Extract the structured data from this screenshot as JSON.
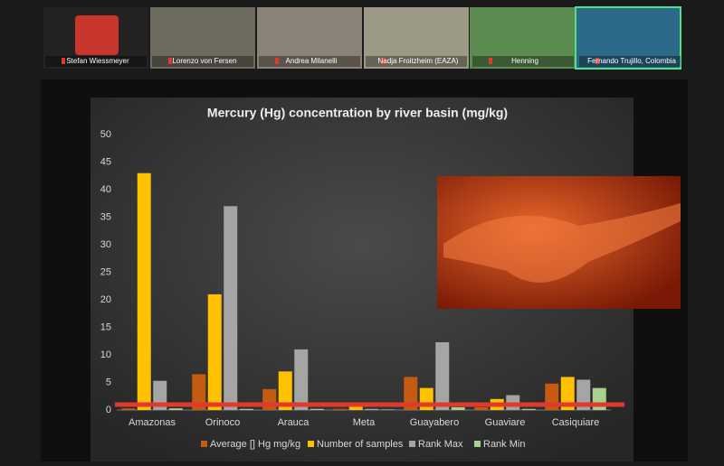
{
  "participants": [
    "Stefan Wiessmeyer",
    "Lorenzo von Fersen",
    "Andrea Milanelli",
    "Nadja Froitzheim (EAZA)",
    "Henning",
    "Fernando Trujillo, Colombia"
  ],
  "chart_data": {
    "type": "bar",
    "title": "Mercury (Hg) concentration by river basin (mg/kg)",
    "categories": [
      "Amazonas",
      "Orinoco",
      "Arauca",
      "Meta",
      "Guayabero",
      "Guaviare",
      "Casiquiare"
    ],
    "series": [
      {
        "name": "Average [] Hg mg/kg",
        "color": "#c55a11",
        "values": [
          0.3,
          6.5,
          3.8,
          0.2,
          6,
          0.5,
          4.8
        ]
      },
      {
        "name": "Number of samples",
        "color": "#ffc000",
        "values": [
          43,
          21,
          7,
          1,
          4,
          2,
          6
        ]
      },
      {
        "name": "Rank Max",
        "color": "#a5a5a5",
        "values": [
          5.3,
          37,
          11,
          0.2,
          12.3,
          2.7,
          5.5
        ]
      },
      {
        "name": "Rank Min",
        "color": "#a9d18e",
        "values": [
          0.3,
          0.2,
          0.2,
          0.1,
          0.5,
          0.2,
          4
        ]
      }
    ],
    "ylim": [
      0,
      50
    ],
    "yticks": [
      0,
      5,
      10,
      15,
      20,
      25,
      30,
      35,
      40,
      45,
      50
    ],
    "grid": false,
    "legend": "bottom"
  }
}
